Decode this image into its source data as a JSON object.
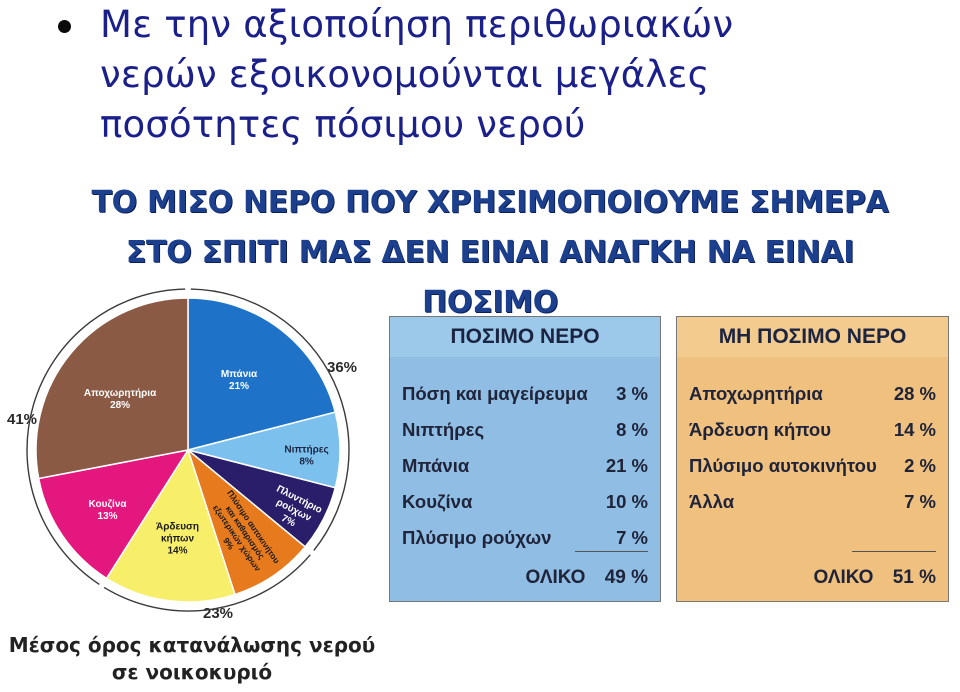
{
  "bullet": {
    "text": "Με την αξιοποίηση περιθωριακών νερών εξοικονομούνται μεγάλες ποσότητες πόσιμου νερού"
  },
  "banner": {
    "line1": "ΤΟ ΜΙΣΟ ΝΕΡΟ ΠΟΥ ΧΡΗΣΙΜΟΠΟΙΟΥΜΕ ΣΗΜΕΡΑ",
    "line2": "ΣΤΟ ΣΠΙΤΙ ΜΑΣ ΔΕΝ ΕΙΝΑΙ ΑΝΑΓΚΗ ΝΑ ΕΙΝΑΙ ΠΟΣΙΜΟ"
  },
  "chart_data": [
    {
      "type": "pie",
      "title": "Μέσος όρος κατανάλωσης νερού σε νοικοκυριό",
      "slices": [
        {
          "label": "Μπάνια",
          "value": 21,
          "display": "21%",
          "color": "#1e73c8"
        },
        {
          "label": "Νιπτήρες",
          "value": 8,
          "display": "8%",
          "color": "#7cc1ee"
        },
        {
          "label": "Πλυντήριο ρούχων",
          "value": 7,
          "display": "7%",
          "color": "#2a1e6a"
        },
        {
          "label": "Πλύσιμο αυτοκινήτου και καθαρισμός εξωτερικών χώρων",
          "value": 9,
          "display": "9%",
          "color": "#e77a1c"
        },
        {
          "label": "Άρδευση κήπων",
          "value": 14,
          "display": "14%",
          "color": "#f7ee6a"
        },
        {
          "label": "Κουζίνα",
          "value": 13,
          "display": "13%",
          "color": "#e4177f"
        },
        {
          "label": "Αποχωρητήρια",
          "value": 28,
          "display": "28%",
          "color": "#8b5a45"
        }
      ],
      "group_labels": [
        "36%",
        "23%",
        "41%"
      ]
    },
    {
      "type": "table",
      "title": "ΠΟΣΙΜΟ ΝΕΡΟ",
      "rows": [
        {
          "label": "Πόση και μαγείρευμα",
          "value": "3 %"
        },
        {
          "label": "Νιπτήρες",
          "value": "8 %"
        },
        {
          "label": "Μπάνια",
          "value": "21 %"
        },
        {
          "label": "Κουζίνα",
          "value": "10 %"
        },
        {
          "label": "Πλύσιμο ρούχων",
          "value": "7 %"
        }
      ],
      "total_label": "ΟΛΙΚΟ",
      "total_value": "49 %"
    },
    {
      "type": "table",
      "title": "ΜΗ ΠΟΣΙΜΟ ΝΕΡΟ",
      "rows": [
        {
          "label": "Αποχωρητήρια",
          "value": "28 %"
        },
        {
          "label": "Άρδευση κήπου",
          "value": "14 %"
        },
        {
          "label": "Πλύσιμο αυτοκινήτου",
          "value": "2 %"
        },
        {
          "label": "Άλλα",
          "value": "7 %"
        }
      ],
      "total_label": "ΟΛΙΚΟ",
      "total_value": "51 %"
    }
  ],
  "caption": {
    "line1": "Μέσος όρος κατανάλωσης νερού",
    "line2": "σε νοικοκυριό"
  }
}
